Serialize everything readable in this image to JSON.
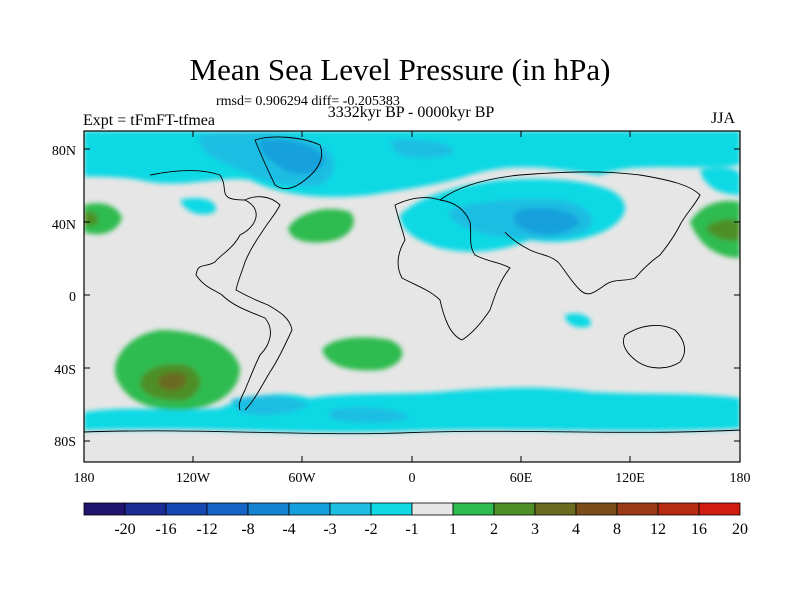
{
  "title": "Mean Sea Level Pressure (in hPa)",
  "stats": "rmsd= 0.906294 diff= -0.205383",
  "period": "3332kyr BP - 0000kyr BP",
  "experiment": "Expt = tFmFT-tfmea",
  "season": "JJA",
  "y_axis_labels": [
    "80N",
    "40N",
    "0",
    "40S",
    "80S"
  ],
  "x_axis_labels": [
    "180",
    "120W",
    "60W",
    "0",
    "60E",
    "120E",
    "180"
  ],
  "colorbar": {
    "labels": [
      "-20",
      "-16",
      "-12",
      "-8",
      "-4",
      "-3",
      "-2",
      "-1",
      "1",
      "2",
      "3",
      "4",
      "8",
      "12",
      "16",
      "20"
    ],
    "colors": [
      "#20146e",
      "#1b2c95",
      "#1747b0",
      "#1563c4",
      "#1582d2",
      "#14a0dc",
      "#1ebde2",
      "#0fd9e4",
      "#e6e6e6",
      "#2fbb4f",
      "#4e8f27",
      "#6b6b22",
      "#7c4d1a",
      "#9a3a16",
      "#b72a14",
      "#d01c10"
    ]
  }
}
